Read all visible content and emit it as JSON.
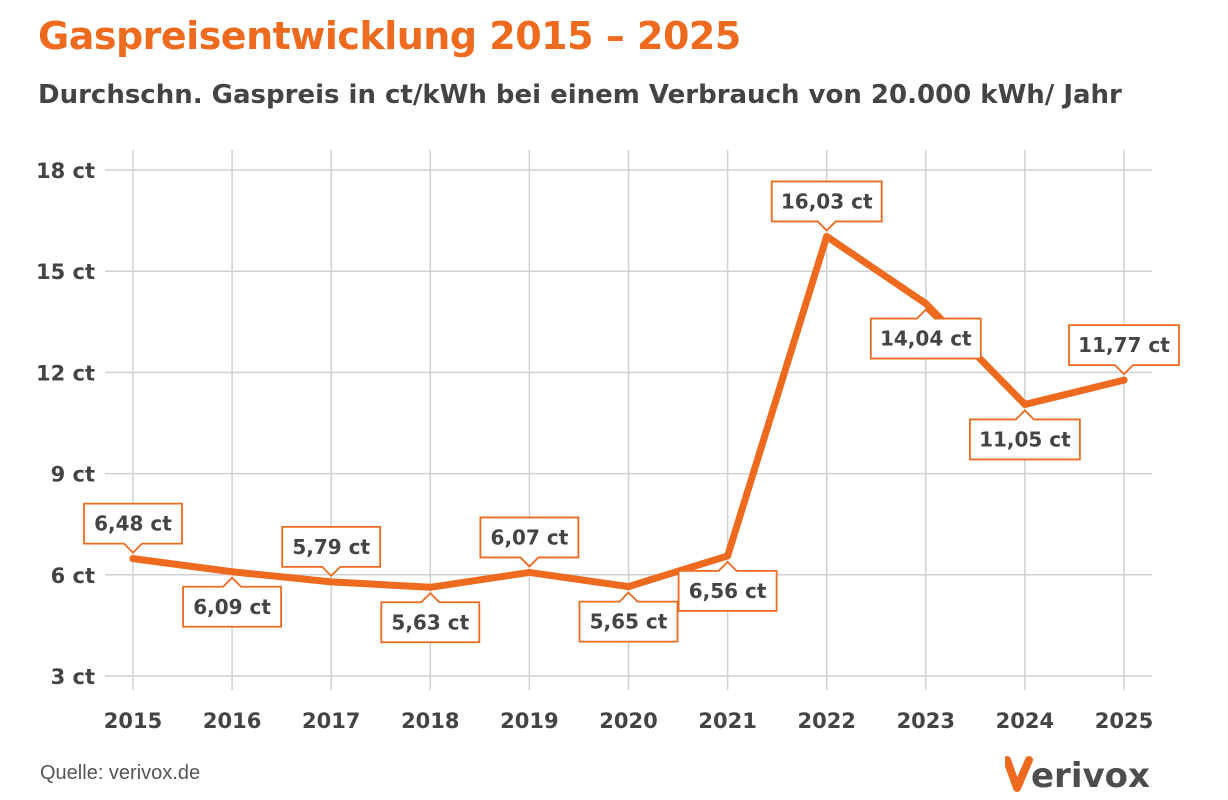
{
  "header": {
    "title": "Gaspreisentwicklung 2015 – 2025",
    "subtitle": "Durchschn. Gaspreis in ct/kWh bei einem Verbrauch von 20.000 kWh/ Jahr"
  },
  "footer": {
    "source": "Quelle: verivox.de",
    "logo_text": "verivox"
  },
  "colors": {
    "accent": "#ee6a1f",
    "text": "#444444",
    "grid": "#d0d0d0"
  },
  "chart_data": {
    "type": "line",
    "title": "Gaspreisentwicklung 2015 – 2025",
    "subtitle": "Durchschn. Gaspreis in ct/kWh bei einem Verbrauch von 20.000 kWh/ Jahr",
    "xlabel": "",
    "ylabel": "",
    "unit": "ct",
    "categories": [
      "2015",
      "2016",
      "2017",
      "2018",
      "2019",
      "2020",
      "2021",
      "2022",
      "2023",
      "2024",
      "2025"
    ],
    "series": [
      {
        "name": "Gaspreis",
        "values": [
          6.48,
          6.09,
          5.79,
          5.63,
          6.07,
          5.65,
          6.56,
          16.03,
          14.04,
          11.05,
          11.77
        ],
        "labels": [
          "6,48 ct",
          "6,09 ct",
          "5,79 ct",
          "5,63 ct",
          "6,07 ct",
          "5,65 ct",
          "6,56 ct",
          "16,03 ct",
          "14,04 ct",
          "11,05 ct",
          "11,77 ct"
        ],
        "label_position": [
          "above",
          "below",
          "above",
          "below",
          "above",
          "below",
          "below",
          "above",
          "below",
          "below",
          "above"
        ]
      }
    ],
    "ylim": [
      3,
      18
    ],
    "yticks": [
      3,
      6,
      9,
      12,
      15,
      18
    ],
    "ytick_labels": [
      "3 ct",
      "6 ct",
      "9 ct",
      "12 ct",
      "15 ct",
      "18 ct"
    ],
    "grid": true,
    "legend": "none"
  }
}
